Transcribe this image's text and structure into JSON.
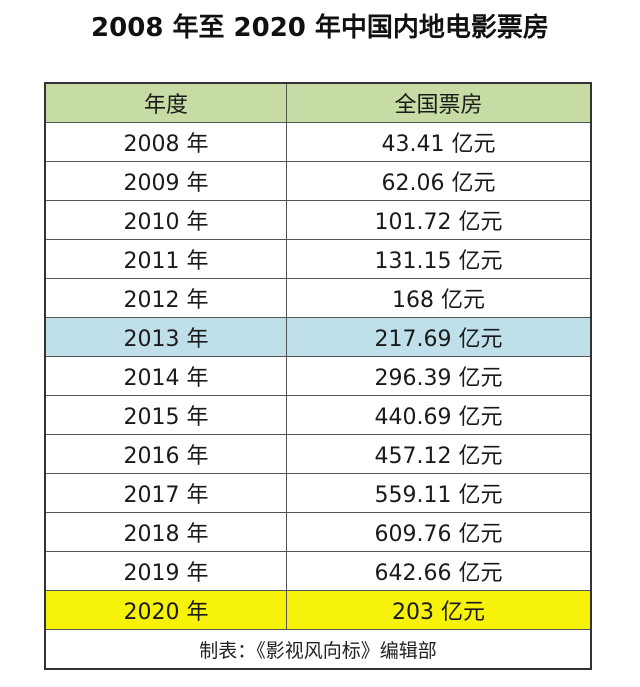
{
  "title": "2008 年至 2020 年中国内地电影票房",
  "table": {
    "headers": {
      "year": "年度",
      "box_office": "全国票房"
    },
    "rows": [
      {
        "year": "2008 年",
        "value": "43.41 亿元"
      },
      {
        "year": "2009 年",
        "value": "62.06 亿元"
      },
      {
        "year": "2010 年",
        "value": "101.72 亿元"
      },
      {
        "year": "2011 年",
        "value": "131.15 亿元"
      },
      {
        "year": "2012 年",
        "value": "168 亿元"
      },
      {
        "year": "2013 年",
        "value": "217.69 亿元"
      },
      {
        "year": "2014 年",
        "value": "296.39 亿元"
      },
      {
        "year": "2015 年",
        "value": "440.69 亿元"
      },
      {
        "year": "2016 年",
        "value": "457.12 亿元"
      },
      {
        "year": "2017 年",
        "value": "559.11 亿元"
      },
      {
        "year": "2018 年",
        "value": "609.76 亿元"
      },
      {
        "year": "2019 年",
        "value": "642.66 亿元"
      },
      {
        "year": "2020 年",
        "value": "203 亿元"
      }
    ],
    "footer": "制表：《影视风向标》编辑部"
  },
  "colors": {
    "header_bg": "#c6dca4",
    "highlight_2013": "#bfe0ea",
    "highlight_2020": "#f7f20a"
  }
}
